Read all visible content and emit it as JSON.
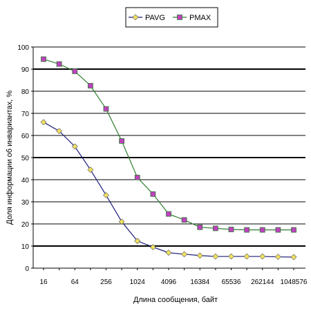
{
  "chart_data": {
    "type": "line",
    "xlabel": "Длина сообщения, байт",
    "ylabel": "Доля информации об инвариантах, %",
    "ylim": [
      0,
      100
    ],
    "yticks": [
      "0",
      "10",
      "20",
      "30",
      "40",
      "50",
      "60",
      "70",
      "80",
      "90",
      "100"
    ],
    "heavy_gridlines": [
      10,
      50,
      90
    ],
    "grid": true,
    "legend_position": "top",
    "x": [
      16,
      32,
      64,
      128,
      256,
      512,
      1024,
      2048,
      4096,
      8192,
      16384,
      32768,
      65536,
      131072,
      262144,
      524288,
      1048576
    ],
    "xtick_labels": [
      "16",
      "64",
      "256",
      "1024",
      "4096",
      "16384",
      "65536",
      "262144",
      "1048576"
    ],
    "series": [
      {
        "name": "PAVG",
        "color": "#1a1a7a",
        "marker": "diamond",
        "marker_color": "#f0e060",
        "values": [
          66,
          62,
          55,
          44.5,
          33,
          21,
          12.3,
          9.5,
          7,
          6.3,
          5.7,
          5.3,
          5.3,
          5.3,
          5.3,
          5.1,
          5
        ]
      },
      {
        "name": "PMAX",
        "color": "#2e7d2e",
        "marker": "square",
        "marker_color": "#c040c0",
        "values": [
          94.5,
          92.3,
          89,
          82.5,
          72,
          57.5,
          41,
          33.5,
          24.5,
          21.8,
          18.5,
          18,
          17.5,
          17.3,
          17.3,
          17.3,
          17.3
        ]
      }
    ]
  }
}
